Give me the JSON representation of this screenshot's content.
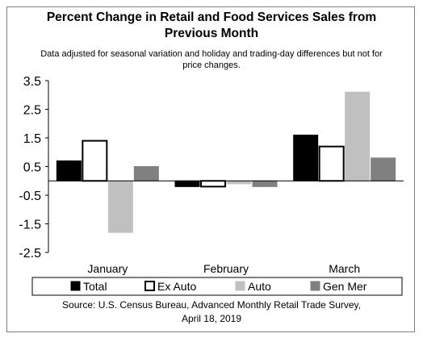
{
  "chart_data": {
    "type": "bar",
    "title_lines": [
      "Percent Change in Retail and Food Services Sales from",
      "Previous Month"
    ],
    "subtitle_lines": [
      "Data adjusted for seasonal variation and holiday and trading-day differences but not for",
      "price changes."
    ],
    "categories": [
      "January",
      "February",
      "March"
    ],
    "series": [
      {
        "name": "Total",
        "values": [
          0.7,
          -0.2,
          1.6
        ],
        "color": "#000000",
        "fill": "#000000"
      },
      {
        "name": "Ex Auto",
        "values": [
          1.4,
          -0.2,
          1.2
        ],
        "color": "#000000",
        "fill": "#ffffff"
      },
      {
        "name": "Auto",
        "values": [
          -1.8,
          -0.1,
          3.1
        ],
        "color": "#c0c0c0",
        "fill": "#c0c0c0"
      },
      {
        "name": "Gen Mer",
        "values": [
          0.5,
          -0.2,
          0.8
        ],
        "color": "#808080",
        "fill": "#808080"
      }
    ],
    "ylim": [
      -2.5,
      3.5
    ],
    "yticks": [
      3.5,
      2.5,
      1.5,
      0.5,
      -0.5,
      -1.5,
      -2.5
    ],
    "ytick_labels": [
      "3.5",
      "2.5",
      "1.5",
      "0.5",
      "-0.5",
      "-1.5",
      "-2.5"
    ],
    "grid": false,
    "legend_position": "bottom",
    "source_lines": [
      "Source: U.S. Census Bureau, Advanced Monthly Retail Trade Survey,",
      "April 18, 2019"
    ]
  }
}
